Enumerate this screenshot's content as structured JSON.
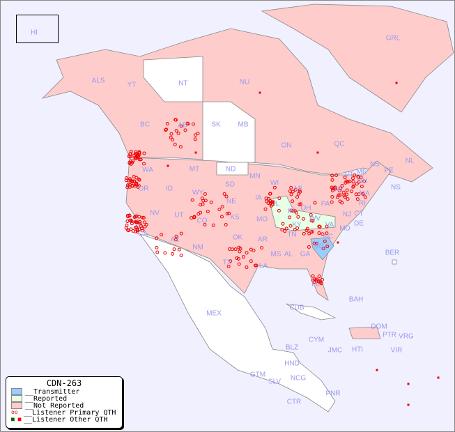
{
  "title": "CDN-263",
  "legend": [
    {
      "label": "__Transmitter",
      "color": "#99ccff"
    },
    {
      "label": "__Reported",
      "color": "#e6ffe6"
    },
    {
      "label": "__Not Reported",
      "color": "#ffcccc"
    },
    {
      "label": "__Listener Primary QTH",
      "marker": "open-circle"
    },
    {
      "label": "__Listener Other QTH",
      "marker": "filled-square"
    }
  ],
  "colors": {
    "background": "#f0f0ff",
    "not_reported": "#ffcccc",
    "reported": "#e6ffe6",
    "transmitter": "#99ccff",
    "unlisted": "#ffffff",
    "label": "#9999ee",
    "listener": "#ff0000"
  },
  "labels": [
    "HI",
    "ALS",
    "YT",
    "NT",
    "NU",
    "GRL",
    "BC",
    "AB",
    "SK",
    "MB",
    "ON",
    "QC",
    "NL",
    "NS",
    "NB",
    "PE",
    "WA",
    "OR",
    "ID",
    "MT",
    "ND",
    "SD",
    "WY",
    "NE",
    "MN",
    "WI",
    "MI",
    "IA",
    "IL",
    "IN",
    "OH",
    "PA",
    "NY",
    "VT",
    "NH",
    "ME",
    "MA",
    "RI",
    "CT",
    "NJ",
    "DE",
    "MD",
    "WV",
    "VA",
    "KY",
    "TN",
    "NC",
    "SC",
    "GA",
    "AL",
    "MS",
    "LA",
    "AR",
    "MO",
    "KS",
    "OK",
    "TX",
    "NM",
    "AZ",
    "UT",
    "CO",
    "NV",
    "CA",
    "FL",
    "BER",
    "BAH",
    "CUB",
    "CYM",
    "JMC",
    "HTI",
    "DOM",
    "PTR",
    "VRG",
    "VIR",
    "MEX",
    "BLZ",
    "GTM",
    "HND",
    "SLV",
    "NCG",
    "CTR",
    "PNR"
  ]
}
